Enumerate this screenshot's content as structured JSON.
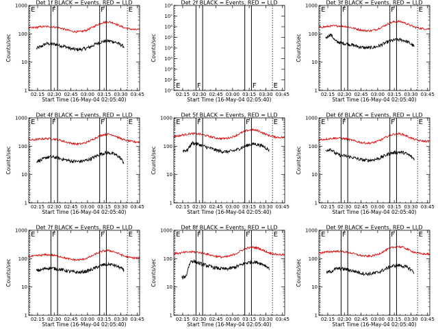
{
  "figure": {
    "background": "#ffffff",
    "events_color": "#000000",
    "lld_color": "#e00000",
    "x_ticks": [
      "02:15",
      "02:30",
      "02:45",
      "03:00",
      "03:15",
      "03:30",
      "03:45"
    ],
    "x_label": "Start Time (16-May-04 02:05:40)",
    "y_label": "Counts/sec"
  },
  "chart_data": [
    {
      "type": "line",
      "title": "Det  1f BLACK = Events, RED = LLD",
      "x_range": [
        "02:07",
        "03:47"
      ],
      "y_scale": "log",
      "y_range": [
        1,
        1000
      ],
      "y_ticks": [
        "1",
        "10",
        "100",
        "1000"
      ],
      "markers": {
        "E": [
          "02:08",
          "03:36"
        ],
        "F": [
          "02:27",
          "03:11"
        ]
      },
      "solid_lines": [
        "02:27",
        "02:33",
        "03:11",
        "03:17"
      ],
      "dotted_lines": [
        "02:08",
        "03:36"
      ],
      "series": [
        {
          "name": "Events",
          "x_start": "02:14",
          "x_end": "03:33",
          "values": [
            30,
            36,
            45,
            44,
            42,
            38,
            35,
            30,
            28,
            28,
            30,
            34,
            42,
            50,
            55,
            56,
            52,
            44,
            35
          ]
        },
        {
          "name": "LLD",
          "x_start": "02:07",
          "x_end": "03:47",
          "values": [
            160,
            165,
            175,
            180,
            180,
            172,
            160,
            140,
            125,
            118,
            120,
            135,
            165,
            210,
            250,
            265,
            245,
            200,
            165,
            150,
            140,
            140
          ]
        }
      ]
    },
    {
      "type": "line",
      "title": "Det  2f BLACK = Events, RED = LLD",
      "x_range": [
        "02:07",
        "03:47"
      ],
      "y_scale": "log",
      "y_range": [
        1,
        100000000
      ],
      "y_ticks": [
        "10⁰",
        "10¹",
        "10²",
        "10³",
        "10⁴",
        "10⁵",
        "10⁶",
        "10⁷",
        "10⁸"
      ],
      "markers": {
        "E": [
          "02:08",
          "03:36"
        ],
        "F": [
          "02:27",
          "03:17"
        ]
      },
      "solid_lines": [
        "02:27",
        "02:33",
        "03:11",
        "03:17"
      ],
      "dotted_lines": [
        "02:08",
        "03:36"
      ],
      "series": []
    },
    {
      "type": "line",
      "title": "Det  3f BLACK = Events, RED = LLD",
      "x_range": [
        "02:07",
        "03:47"
      ],
      "y_scale": "log",
      "y_range": [
        1,
        1000
      ],
      "y_ticks": [
        "1",
        "10",
        "100",
        "1000"
      ],
      "markers": {
        "E": [
          "02:08",
          "03:36"
        ],
        "F": [
          "02:27",
          "03:11"
        ]
      },
      "solid_lines": [
        "02:27",
        "02:33",
        "03:11",
        "03:17"
      ],
      "dotted_lines": [
        "02:08",
        "03:36"
      ],
      "series": [
        {
          "name": "Events",
          "x_start": "02:13",
          "x_end": "03:33",
          "values": [
            70,
            95,
            55,
            48,
            45,
            42,
            38,
            34,
            32,
            32,
            34,
            38,
            46,
            55,
            60,
            62,
            58,
            48,
            35
          ]
        },
        {
          "name": "LLD",
          "x_start": "02:07",
          "x_end": "03:47",
          "values": [
            170,
            175,
            185,
            190,
            190,
            182,
            168,
            150,
            135,
            128,
            130,
            145,
            175,
            220,
            260,
            275,
            255,
            210,
            175,
            158,
            150,
            150
          ]
        }
      ]
    },
    {
      "type": "line",
      "title": "Det  4f BLACK = Events, RED = LLD",
      "x_range": [
        "02:07",
        "03:47"
      ],
      "y_scale": "log",
      "y_range": [
        1,
        1000
      ],
      "y_ticks": [
        "1",
        "10",
        "100",
        "1000"
      ],
      "markers": {
        "E": [
          "02:08",
          "03:36"
        ],
        "F": [
          "02:27",
          "03:11"
        ]
      },
      "solid_lines": [
        "02:27",
        "02:33",
        "03:11",
        "03:17"
      ],
      "dotted_lines": [
        "02:08",
        "03:36"
      ],
      "series": [
        {
          "name": "Events",
          "x_start": "02:14",
          "x_end": "03:33",
          "values": [
            30,
            32,
            40,
            42,
            40,
            36,
            33,
            30,
            29,
            29,
            31,
            35,
            42,
            52,
            58,
            58,
            52,
            42,
            25
          ]
        },
        {
          "name": "LLD",
          "x_start": "02:07",
          "x_end": "03:47",
          "values": [
            165,
            170,
            178,
            185,
            185,
            176,
            162,
            142,
            128,
            120,
            122,
            138,
            168,
            212,
            252,
            268,
            248,
            202,
            168,
            152,
            142,
            142
          ]
        }
      ]
    },
    {
      "type": "line",
      "title": "Det  5f BLACK = Events, RED = LLD",
      "x_range": [
        "02:07",
        "03:47"
      ],
      "y_scale": "log",
      "y_range": [
        1,
        1000
      ],
      "y_ticks": [
        "1",
        "10",
        "100",
        "1000"
      ],
      "markers": {
        "E": [
          "02:08",
          "03:36"
        ],
        "F": [
          "02:27",
          "03:11"
        ]
      },
      "solid_lines": [
        "02:27",
        "02:33",
        "03:11",
        "03:17"
      ],
      "dotted_lines": [
        "02:08",
        "03:36"
      ],
      "series": [
        {
          "name": "Events",
          "x_start": "02:15",
          "x_end": "03:33",
          "values": [
            70,
            72,
            130,
            120,
            105,
            92,
            82,
            72,
            66,
            64,
            66,
            72,
            85,
            100,
            115,
            120,
            110,
            95,
            70
          ]
        },
        {
          "name": "LLD",
          "x_start": "02:07",
          "x_end": "03:47",
          "values": [
            225,
            235,
            255,
            275,
            280,
            265,
            240,
            215,
            195,
            185,
            190,
            210,
            250,
            310,
            365,
            380,
            350,
            285,
            240,
            215,
            205,
            205
          ]
        }
      ]
    },
    {
      "type": "line",
      "title": "Det  6f BLACK = Events, RED = LLD",
      "x_range": [
        "02:07",
        "03:47"
      ],
      "y_scale": "log",
      "y_range": [
        1,
        1000
      ],
      "y_ticks": [
        "1",
        "10",
        "100",
        "1000"
      ],
      "markers": {
        "E": [
          "02:08",
          "03:36"
        ],
        "F": [
          "02:27",
          "03:11"
        ]
      },
      "solid_lines": [
        "02:27",
        "02:33",
        "03:11",
        "03:17"
      ],
      "dotted_lines": [
        "02:08",
        "03:36"
      ],
      "series": [
        {
          "name": "Events",
          "x_start": "02:13",
          "x_end": "03:33",
          "values": [
            70,
            80,
            55,
            48,
            45,
            42,
            38,
            34,
            32,
            32,
            34,
            38,
            46,
            55,
            60,
            62,
            58,
            48,
            35
          ]
        },
        {
          "name": "LLD",
          "x_start": "02:07",
          "x_end": "03:47",
          "values": [
            170,
            175,
            185,
            192,
            192,
            182,
            168,
            150,
            135,
            128,
            130,
            146,
            176,
            222,
            262,
            278,
            258,
            212,
            176,
            158,
            150,
            150
          ]
        }
      ]
    },
    {
      "type": "line",
      "title": "Det  7f BLACK = Events, RED = LLD",
      "x_range": [
        "02:07",
        "03:47"
      ],
      "y_scale": "log",
      "y_range": [
        1,
        1000
      ],
      "y_ticks": [
        "1",
        "10",
        "100",
        "1000"
      ],
      "markers": {
        "E": [
          "02:08",
          "03:36"
        ],
        "F": [
          "02:27",
          "03:11"
        ]
      },
      "solid_lines": [
        "02:27",
        "02:33",
        "03:11",
        "03:17"
      ],
      "dotted_lines": [
        "02:08",
        "03:36"
      ],
      "series": [
        {
          "name": "Events",
          "x_start": "02:14",
          "x_end": "03:33",
          "values": [
            38,
            40,
            46,
            46,
            44,
            41,
            38,
            35,
            33,
            33,
            35,
            39,
            46,
            55,
            62,
            63,
            58,
            50,
            38
          ]
        },
        {
          "name": "LLD",
          "x_start": "02:07",
          "x_end": "03:47",
          "values": [
            118,
            122,
            130,
            136,
            136,
            128,
            118,
            104,
            94,
            90,
            92,
            104,
            124,
            156,
            184,
            194,
            180,
            150,
            124,
            110,
            106,
            106
          ]
        }
      ]
    },
    {
      "type": "line",
      "title": "Det  8f BLACK = Events, RED = LLD",
      "x_range": [
        "02:07",
        "03:47"
      ],
      "y_scale": "log",
      "y_range": [
        1,
        1000
      ],
      "y_ticks": [
        "1",
        "10",
        "100",
        "1000"
      ],
      "markers": {
        "E": [
          "02:08",
          "03:36"
        ],
        "F": [
          "02:27",
          "03:11"
        ]
      },
      "solid_lines": [
        "02:27",
        "02:33",
        "03:11",
        "03:17"
      ],
      "dotted_lines": [
        "02:08",
        "03:36"
      ],
      "series": [
        {
          "name": "Events",
          "x_start": "02:14",
          "x_end": "03:33",
          "values": [
            20,
            25,
            85,
            75,
            65,
            58,
            52,
            47,
            44,
            43,
            45,
            50,
            58,
            68,
            75,
            76,
            70,
            60,
            45
          ]
        },
        {
          "name": "LLD",
          "x_start": "02:07",
          "x_end": "03:47",
          "values": [
            150,
            155,
            165,
            172,
            172,
            163,
            150,
            133,
            120,
            114,
            116,
            130,
            158,
            200,
            238,
            252,
            234,
            192,
            160,
            145,
            138,
            138
          ]
        }
      ]
    },
    {
      "type": "line",
      "title": "Det  9f BLACK = Events, RED = LLD",
      "x_range": [
        "02:07",
        "03:47"
      ],
      "y_scale": "log",
      "y_range": [
        1,
        1000
      ],
      "y_ticks": [
        "1",
        "10",
        "100",
        "1000"
      ],
      "markers": {
        "E": [
          "02:08",
          "03:36"
        ],
        "F": [
          "02:27",
          "03:11"
        ]
      },
      "solid_lines": [
        "02:27",
        "02:33",
        "03:11",
        "03:17"
      ],
      "dotted_lines": [
        "02:08",
        "03:36"
      ],
      "series": [
        {
          "name": "Events",
          "x_start": "02:14",
          "x_end": "03:33",
          "values": [
            32,
            36,
            44,
            44,
            42,
            38,
            35,
            31,
            29,
            29,
            31,
            35,
            42,
            51,
            57,
            58,
            53,
            45,
            32
          ]
        },
        {
          "name": "LLD",
          "x_start": "02:07",
          "x_end": "03:47",
          "values": [
            160,
            165,
            175,
            182,
            182,
            173,
            160,
            142,
            128,
            122,
            124,
            138,
            168,
            212,
            252,
            268,
            248,
            204,
            170,
            152,
            145,
            145
          ]
        }
      ]
    }
  ]
}
